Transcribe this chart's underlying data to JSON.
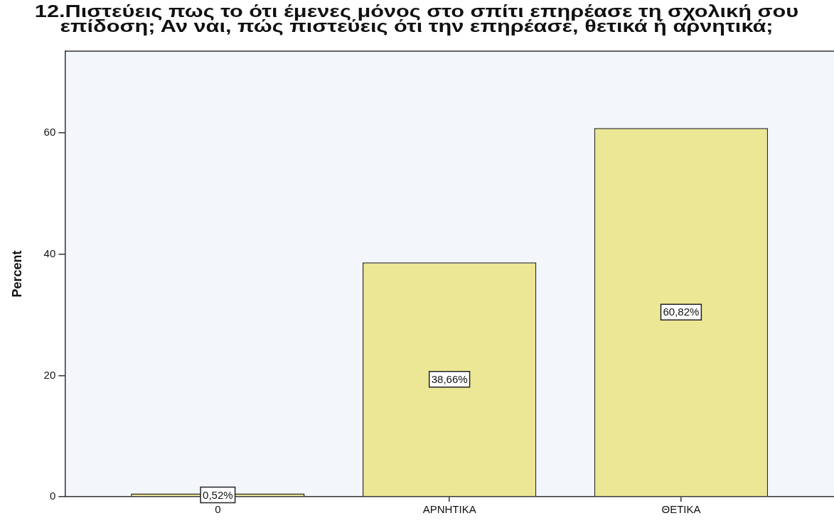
{
  "chart_data": {
    "type": "bar",
    "title": "12.Πιστεύεις πως το ότι έμενες μόνος στο σπίτι επηρέασε τη σχολική σου επίδοση; Αν ναι, πώς πιστεύεις ότι την επηρέασε, θετικά ή αρνητικά;",
    "ylabel": "Percent",
    "categories": [
      "0",
      "ΑΡΝΗΤΙΚΑ",
      "ΘΕΤΙΚΑ"
    ],
    "values": [
      0.52,
      38.66,
      60.82
    ],
    "value_labels": [
      "0,52%",
      "38,66%",
      "60,82%"
    ],
    "color": "#ece794",
    "ylim": [
      0,
      73.5
    ],
    "yticks": [
      0,
      20,
      40,
      60
    ],
    "grid": false,
    "legend": false
  }
}
